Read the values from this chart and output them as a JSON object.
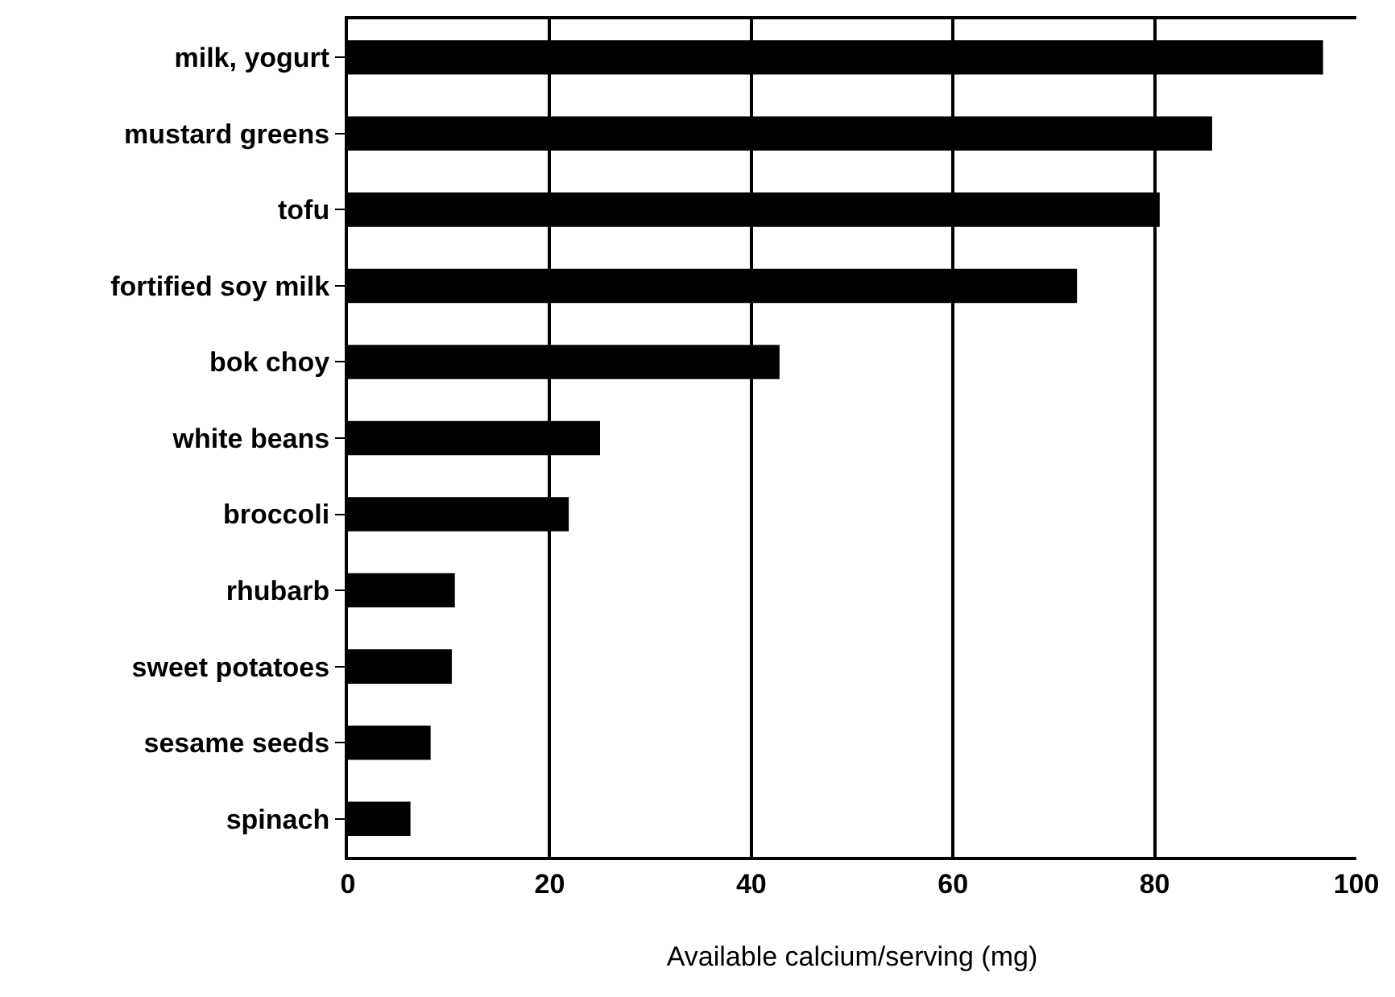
{
  "chart_data": {
    "type": "bar",
    "orientation": "horizontal",
    "xlabel": "Available calcium/serving (mg)",
    "categories": [
      "milk, yogurt",
      "mustard greens",
      "tofu",
      "fortified soy milk",
      "bok choy",
      "white beans",
      "broccoli",
      "rhubarb",
      "sweet potatoes",
      "sesame seeds",
      "spinach"
    ],
    "values": [
      96.7,
      85.7,
      80.5,
      72.3,
      42.8,
      25.0,
      21.9,
      10.6,
      10.3,
      8.2,
      6.2
    ],
    "color": "#000000",
    "xlim": [
      0,
      100
    ],
    "xticks": [
      0,
      20,
      40,
      60,
      80,
      100
    ],
    "grid": "x",
    "legend": false
  }
}
